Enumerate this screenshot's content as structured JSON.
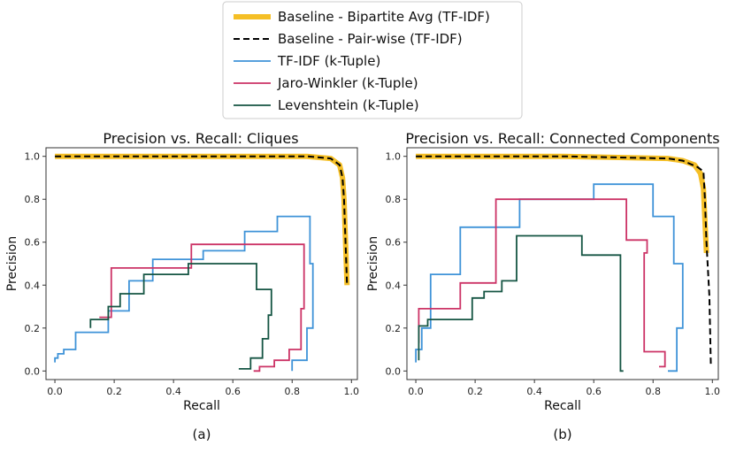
{
  "chart_data": [
    {
      "type": "line",
      "title": "Precision vs. Recall: Cliques",
      "xlabel": "Recall",
      "ylabel": "Precision",
      "caption": "(a)",
      "xlim": [
        -0.03,
        1.02
      ],
      "ylim": [
        -0.04,
        1.04
      ],
      "xticks": [
        "0.0",
        "0.2",
        "0.4",
        "0.6",
        "0.8",
        "1.0"
      ],
      "yticks": [
        "0.0",
        "0.2",
        "0.4",
        "0.6",
        "0.8",
        "1.0"
      ],
      "series": [
        {
          "name": "Baseline - Bipartite Avg (TF-IDF)",
          "x": [
            0.0,
            0.5,
            0.85,
            0.93,
            0.96,
            0.97,
            0.975,
            0.98,
            0.985
          ],
          "y": [
            1.0,
            1.0,
            1.0,
            0.99,
            0.96,
            0.9,
            0.8,
            0.6,
            0.4
          ]
        },
        {
          "name": "Baseline - Pair-wise (TF-IDF)",
          "x": [
            0.0,
            0.5,
            0.85,
            0.93,
            0.96,
            0.97,
            0.975,
            0.98,
            0.985
          ],
          "y": [
            1.0,
            1.0,
            1.0,
            0.99,
            0.96,
            0.9,
            0.8,
            0.6,
            0.4
          ]
        },
        {
          "name": "TF-IDF (k-Tuple)",
          "x": [
            0.0,
            0.0,
            0.01,
            0.01,
            0.03,
            0.03,
            0.07,
            0.07,
            0.18,
            0.18,
            0.25,
            0.25,
            0.33,
            0.33,
            0.5,
            0.5,
            0.64,
            0.64,
            0.75,
            0.75,
            0.86,
            0.86,
            0.87,
            0.87,
            0.85,
            0.85,
            0.8,
            0.8
          ],
          "y": [
            0.04,
            0.06,
            0.06,
            0.08,
            0.08,
            0.1,
            0.1,
            0.18,
            0.18,
            0.28,
            0.28,
            0.42,
            0.42,
            0.52,
            0.52,
            0.56,
            0.56,
            0.65,
            0.65,
            0.72,
            0.72,
            0.5,
            0.5,
            0.2,
            0.2,
            0.05,
            0.05,
            0.0
          ]
        },
        {
          "name": "Jaro-Winkler (k-Tuple)",
          "x": [
            0.15,
            0.19,
            0.19,
            0.46,
            0.46,
            0.64,
            0.64,
            0.84,
            0.84,
            0.83,
            0.83,
            0.79,
            0.79,
            0.74,
            0.74,
            0.69,
            0.69,
            0.67
          ],
          "y": [
            0.25,
            0.25,
            0.48,
            0.48,
            0.59,
            0.59,
            0.59,
            0.59,
            0.29,
            0.29,
            0.1,
            0.1,
            0.05,
            0.05,
            0.02,
            0.02,
            0.0,
            0.0
          ]
        },
        {
          "name": "Levenshtein (k-Tuple)",
          "x": [
            0.12,
            0.12,
            0.18,
            0.18,
            0.22,
            0.22,
            0.3,
            0.3,
            0.45,
            0.45,
            0.68,
            0.68,
            0.73,
            0.73,
            0.72,
            0.72,
            0.7,
            0.7,
            0.66,
            0.66,
            0.62
          ],
          "y": [
            0.2,
            0.24,
            0.24,
            0.3,
            0.3,
            0.36,
            0.36,
            0.45,
            0.45,
            0.5,
            0.5,
            0.38,
            0.38,
            0.26,
            0.26,
            0.15,
            0.15,
            0.06,
            0.06,
            0.01,
            0.01
          ]
        }
      ]
    },
    {
      "type": "line",
      "title": "Precision vs. Recall: Connected Components",
      "xlabel": "Recall",
      "ylabel": "Precision",
      "caption": "(b)",
      "xlim": [
        -0.03,
        1.02
      ],
      "ylim": [
        -0.04,
        1.04
      ],
      "xticks": [
        "0.0",
        "0.2",
        "0.4",
        "0.6",
        "0.8",
        "1.0"
      ],
      "yticks": [
        "0.0",
        "0.2",
        "0.4",
        "0.6",
        "0.8",
        "1.0"
      ],
      "series": [
        {
          "name": "Baseline - Bipartite Avg (TF-IDF)",
          "x": [
            0.0,
            0.5,
            0.85,
            0.9,
            0.94,
            0.96,
            0.97,
            0.975,
            0.98
          ],
          "y": [
            1.0,
            1.0,
            0.99,
            0.98,
            0.96,
            0.92,
            0.85,
            0.7,
            0.55
          ]
        },
        {
          "name": "Baseline - Pair-wise (TF-IDF)",
          "x": [
            0.0,
            0.5,
            0.85,
            0.9,
            0.95,
            0.97,
            0.975,
            0.98,
            0.99,
            0.995
          ],
          "y": [
            1.0,
            1.0,
            0.99,
            0.98,
            0.95,
            0.93,
            0.8,
            0.6,
            0.35,
            0.02
          ]
        },
        {
          "name": "TF-IDF (k-Tuple)",
          "x": [
            0.0,
            0.0,
            0.02,
            0.02,
            0.05,
            0.05,
            0.15,
            0.15,
            0.35,
            0.35,
            0.6,
            0.6,
            0.8,
            0.8,
            0.87,
            0.87,
            0.9,
            0.9,
            0.88,
            0.88,
            0.85
          ],
          "y": [
            0.04,
            0.1,
            0.1,
            0.2,
            0.2,
            0.45,
            0.45,
            0.67,
            0.67,
            0.8,
            0.8,
            0.87,
            0.87,
            0.72,
            0.72,
            0.5,
            0.5,
            0.2,
            0.2,
            0.0,
            0.0
          ]
        },
        {
          "name": "Jaro-Winkler (k-Tuple)",
          "x": [
            0.01,
            0.01,
            0.15,
            0.15,
            0.27,
            0.27,
            0.71,
            0.71,
            0.78,
            0.78,
            0.77,
            0.77,
            0.84,
            0.84,
            0.82
          ],
          "y": [
            0.13,
            0.29,
            0.29,
            0.41,
            0.41,
            0.8,
            0.8,
            0.61,
            0.61,
            0.55,
            0.55,
            0.09,
            0.09,
            0.02,
            0.02
          ]
        },
        {
          "name": "Levenshtein (k-Tuple)",
          "x": [
            0.01,
            0.01,
            0.04,
            0.04,
            0.19,
            0.19,
            0.23,
            0.23,
            0.29,
            0.29,
            0.34,
            0.34,
            0.56,
            0.56,
            0.69,
            0.69,
            0.7
          ],
          "y": [
            0.05,
            0.21,
            0.21,
            0.24,
            0.24,
            0.34,
            0.34,
            0.37,
            0.37,
            0.42,
            0.42,
            0.63,
            0.63,
            0.54,
            0.54,
            0.0,
            0.0
          ]
        }
      ]
    }
  ],
  "legend": {
    "position": "top-center",
    "entries": [
      {
        "label": "Baseline - Bipartite Avg (TF-IDF)",
        "color": "#f5bf26",
        "style": "thick"
      },
      {
        "label": "Baseline - Pair-wise (TF-IDF)",
        "color": "#000000",
        "style": "dashed"
      },
      {
        "label": "TF-IDF (k-Tuple)",
        "color": "#3f93d8",
        "style": "solid"
      },
      {
        "label": "Jaro-Winkler (k-Tuple)",
        "color": "#cc3366",
        "style": "solid"
      },
      {
        "label": "Levenshtein (k-Tuple)",
        "color": "#155543",
        "style": "solid"
      }
    ]
  }
}
